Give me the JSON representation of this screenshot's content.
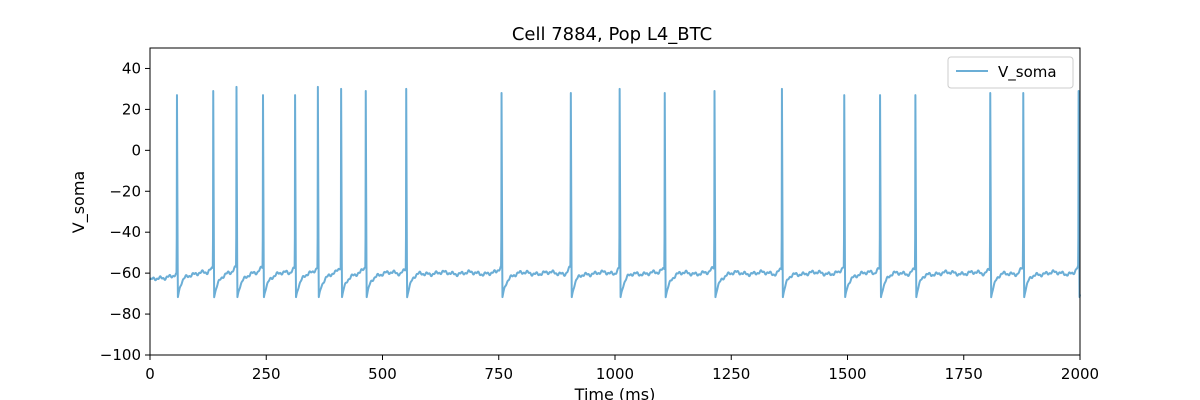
{
  "chart_data": {
    "type": "line",
    "title": "Cell 7884, Pop L4_BTC",
    "xlabel": "Time (ms)",
    "ylabel": "V_soma",
    "xlim": [
      0,
      2000
    ],
    "ylim": [
      -100,
      50
    ],
    "xticks": [
      0,
      250,
      500,
      750,
      1000,
      1250,
      1500,
      1750,
      2000
    ],
    "yticks": [
      -100,
      -80,
      -60,
      -40,
      -20,
      0,
      20,
      40
    ],
    "legend": {
      "position": "top-right",
      "entries": [
        "V_soma"
      ]
    },
    "grid": false,
    "series": [
      {
        "name": "V_soma",
        "color": "#6baed6",
        "rest_potential": -60,
        "trough": -72,
        "spike_times": [
          58,
          136,
          186,
          243,
          312,
          361,
          411,
          464,
          551,
          756,
          905,
          1010,
          1107,
          1214,
          1359,
          1493,
          1570,
          1646,
          1807,
          1878,
          1997
        ],
        "spike_peaks": [
          27,
          29,
          31,
          27,
          27,
          31,
          30,
          29,
          30,
          28,
          28,
          30,
          28,
          29,
          30,
          27,
          27,
          27,
          28,
          28,
          29
        ]
      }
    ]
  }
}
